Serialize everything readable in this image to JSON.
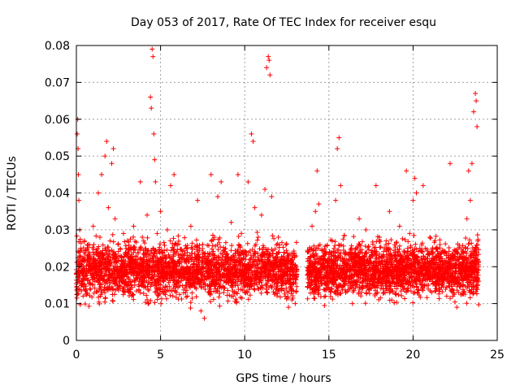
{
  "chart_data": {
    "type": "scatter",
    "title": "Day 053 of 2017, Rate Of TEC Index for receiver esqu",
    "xlabel": "GPS time / hours",
    "ylabel": "ROTI / TECUs",
    "xlim": [
      0,
      25
    ],
    "ylim": [
      0,
      0.08
    ],
    "xticks": [
      0,
      5,
      10,
      15,
      20,
      25
    ],
    "xtick_labels": [
      "0",
      "5",
      "10",
      "15",
      "20",
      "25"
    ],
    "yticks": [
      0,
      0.01,
      0.02,
      0.03,
      0.04,
      0.05,
      0.06,
      0.07,
      0.08
    ],
    "ytick_labels": [
      "0",
      "0.01",
      "0.02",
      "0.03",
      "0.04",
      "0.05",
      "0.06",
      "0.07",
      "0.08"
    ],
    "grid": true,
    "marker": "+",
    "color": "#ff0000",
    "series": [
      {
        "name": "ROTI",
        "points": [
          [
            0.0,
            0.018
          ],
          [
            0.05,
            0.056
          ],
          [
            0.08,
            0.06
          ],
          [
            0.1,
            0.052
          ],
          [
            0.12,
            0.045
          ],
          [
            0.15,
            0.038
          ],
          [
            0.2,
            0.03
          ],
          [
            0.25,
            0.025
          ],
          [
            0.3,
            0.015
          ],
          [
            0.4,
            0.012
          ],
          [
            0.5,
            0.022
          ],
          [
            0.6,
            0.019
          ],
          [
            0.7,
            0.026
          ],
          [
            0.8,
            0.014
          ],
          [
            0.9,
            0.02
          ],
          [
            1.0,
            0.031
          ],
          [
            1.1,
            0.017
          ],
          [
            1.2,
            0.024
          ],
          [
            1.3,
            0.04
          ],
          [
            1.4,
            0.028
          ],
          [
            1.5,
            0.045
          ],
          [
            1.6,
            0.021
          ],
          [
            1.7,
            0.05
          ],
          [
            1.8,
            0.054
          ],
          [
            1.9,
            0.036
          ],
          [
            2.0,
            0.027
          ],
          [
            2.1,
            0.048
          ],
          [
            2.2,
            0.052
          ],
          [
            2.3,
            0.033
          ],
          [
            2.4,
            0.019
          ],
          [
            2.5,
            0.014
          ],
          [
            2.6,
            0.023
          ],
          [
            2.8,
            0.029
          ],
          [
            3.0,
            0.018
          ],
          [
            3.2,
            0.025
          ],
          [
            3.4,
            0.031
          ],
          [
            3.6,
            0.02
          ],
          [
            3.8,
            0.043
          ],
          [
            4.0,
            0.027
          ],
          [
            4.2,
            0.034
          ],
          [
            4.4,
            0.066
          ],
          [
            4.45,
            0.063
          ],
          [
            4.5,
            0.079
          ],
          [
            4.55,
            0.077
          ],
          [
            4.6,
            0.056
          ],
          [
            4.65,
            0.049
          ],
          [
            4.7,
            0.043
          ],
          [
            4.8,
            0.029
          ],
          [
            5.0,
            0.035
          ],
          [
            5.2,
            0.021
          ],
          [
            5.4,
            0.03
          ],
          [
            5.6,
            0.042
          ],
          [
            5.8,
            0.045
          ],
          [
            6.0,
            0.026
          ],
          [
            6.2,
            0.018
          ],
          [
            6.4,
            0.023
          ],
          [
            6.6,
            0.012
          ],
          [
            6.8,
            0.031
          ],
          [
            7.0,
            0.017
          ],
          [
            7.2,
            0.038
          ],
          [
            7.4,
            0.008
          ],
          [
            7.6,
            0.006
          ],
          [
            7.8,
            0.02
          ],
          [
            8.0,
            0.045
          ],
          [
            8.2,
            0.028
          ],
          [
            8.4,
            0.039
          ],
          [
            8.6,
            0.043
          ],
          [
            8.8,
            0.024
          ],
          [
            9.0,
            0.016
          ],
          [
            9.2,
            0.032
          ],
          [
            9.4,
            0.021
          ],
          [
            9.6,
            0.045
          ],
          [
            9.8,
            0.029
          ],
          [
            10.0,
            0.013
          ],
          [
            10.2,
            0.043
          ],
          [
            10.4,
            0.056
          ],
          [
            10.5,
            0.054
          ],
          [
            10.6,
            0.036
          ],
          [
            10.8,
            0.028
          ],
          [
            11.0,
            0.034
          ],
          [
            11.2,
            0.041
          ],
          [
            11.3,
            0.074
          ],
          [
            11.4,
            0.077
          ],
          [
            11.45,
            0.076
          ],
          [
            11.5,
            0.072
          ],
          [
            11.6,
            0.039
          ],
          [
            11.8,
            0.022
          ],
          [
            12.0,
            0.028
          ],
          [
            12.2,
            0.016
          ],
          [
            12.4,
            0.012
          ],
          [
            12.6,
            0.009
          ],
          [
            12.8,
            0.011
          ],
          [
            13.0,
            0.01
          ],
          [
            13.8,
            0.024
          ],
          [
            14.0,
            0.031
          ],
          [
            14.2,
            0.035
          ],
          [
            14.3,
            0.046
          ],
          [
            14.4,
            0.037
          ],
          [
            14.6,
            0.02
          ],
          [
            14.8,
            0.012
          ],
          [
            15.0,
            0.021
          ],
          [
            15.2,
            0.027
          ],
          [
            15.4,
            0.038
          ],
          [
            15.5,
            0.052
          ],
          [
            15.6,
            0.055
          ],
          [
            15.7,
            0.042
          ],
          [
            15.8,
            0.017
          ],
          [
            16.0,
            0.013
          ],
          [
            16.2,
            0.022
          ],
          [
            16.4,
            0.01
          ],
          [
            16.6,
            0.025
          ],
          [
            16.8,
            0.033
          ],
          [
            17.0,
            0.018
          ],
          [
            17.2,
            0.03
          ],
          [
            17.4,
            0.014
          ],
          [
            17.6,
            0.024
          ],
          [
            17.8,
            0.042
          ],
          [
            18.0,
            0.028
          ],
          [
            18.2,
            0.02
          ],
          [
            18.4,
            0.027
          ],
          [
            18.6,
            0.035
          ],
          [
            18.8,
            0.016
          ],
          [
            19.0,
            0.023
          ],
          [
            19.2,
            0.031
          ],
          [
            19.4,
            0.021
          ],
          [
            19.6,
            0.046
          ],
          [
            19.8,
            0.029
          ],
          [
            20.0,
            0.038
          ],
          [
            20.1,
            0.044
          ],
          [
            20.2,
            0.04
          ],
          [
            20.4,
            0.025
          ],
          [
            20.6,
            0.042
          ],
          [
            20.8,
            0.018
          ],
          [
            21.0,
            0.028
          ],
          [
            21.2,
            0.022
          ],
          [
            21.4,
            0.014
          ],
          [
            21.6,
            0.026
          ],
          [
            21.8,
            0.017
          ],
          [
            22.0,
            0.012
          ],
          [
            22.2,
            0.048
          ],
          [
            22.4,
            0.022
          ],
          [
            22.6,
            0.009
          ],
          [
            22.8,
            0.018
          ],
          [
            23.0,
            0.024
          ],
          [
            23.2,
            0.033
          ],
          [
            23.3,
            0.046
          ],
          [
            23.4,
            0.038
          ],
          [
            23.5,
            0.048
          ],
          [
            23.6,
            0.062
          ],
          [
            23.7,
            0.067
          ],
          [
            23.75,
            0.065
          ],
          [
            23.8,
            0.058
          ],
          [
            23.85,
            0.027
          ],
          [
            23.9,
            0.02
          ]
        ]
      }
    ],
    "density": {
      "description": "dense scatter band",
      "segments": [
        {
          "x0": 0.0,
          "x1": 13.1,
          "ymin": 0.006,
          "ymax": 0.034,
          "center": 0.019,
          "count": 2600
        },
        {
          "x0": 13.7,
          "x1": 23.9,
          "ymin": 0.006,
          "ymax": 0.033,
          "center": 0.019,
          "count": 2300
        }
      ]
    }
  }
}
